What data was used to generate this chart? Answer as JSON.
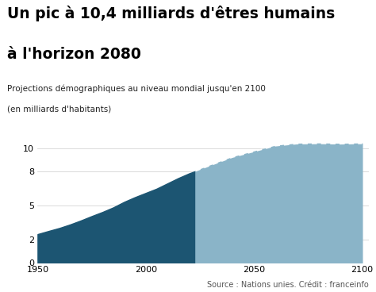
{
  "title_line1": "Un pic à 10,4 milliards d'êtres humains",
  "title_line2": "à l'horizon 2080",
  "subtitle_line1": "Projections démographiques au niveau mondial jusqu'en 2100",
  "subtitle_line2": "(en milliards d'habitants)",
  "source": "Source : Nations unies. Crédit : franceinfo",
  "historical_color": "#1c5572",
  "projection_color": "#8ab4c8",
  "background_color": "#ffffff",
  "yticks": [
    0,
    2,
    5,
    8,
    10
  ],
  "xticks": [
    1950,
    2000,
    2050,
    2100
  ],
  "xlim": [
    1950,
    2103
  ],
  "ylim": [
    0,
    11.2
  ],
  "transition_year": 2023,
  "historical_data": {
    "years": [
      1950,
      1955,
      1960,
      1965,
      1970,
      1975,
      1980,
      1985,
      1990,
      1995,
      2000,
      2005,
      2010,
      2015,
      2020,
      2023
    ],
    "values": [
      2.5,
      2.77,
      3.03,
      3.34,
      3.69,
      4.07,
      4.43,
      4.83,
      5.31,
      5.72,
      6.09,
      6.46,
      6.92,
      7.38,
      7.79,
      8.0
    ]
  },
  "projection_data": {
    "years": [
      2023,
      2030,
      2040,
      2050,
      2060,
      2070,
      2080,
      2090,
      2100
    ],
    "values": [
      8.0,
      8.5,
      9.2,
      9.7,
      10.2,
      10.38,
      10.4,
      10.37,
      10.4
    ]
  },
  "title_fontsize": 13.5,
  "subtitle_fontsize": 7.5,
  "tick_fontsize": 8,
  "source_fontsize": 7
}
